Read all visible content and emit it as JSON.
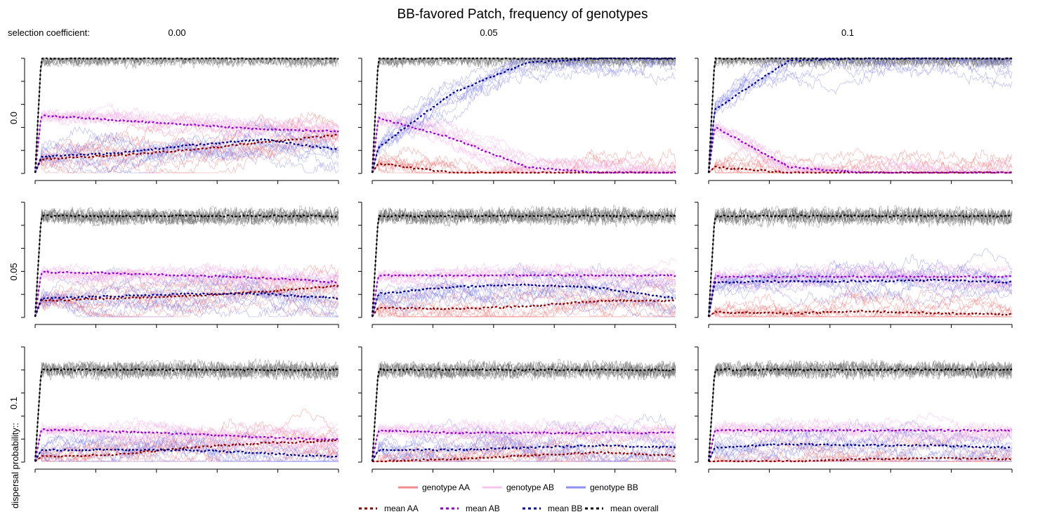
{
  "title": "BB-favored Patch, frequency of genotypes",
  "col_header_label": "selection coefficient:",
  "row_header_label": "dispersal probability::",
  "legend": {
    "lines": [
      {
        "label": "genotype AA",
        "color": "#f28c8c"
      },
      {
        "label": "genotype AB",
        "color": "#f7c6ec"
      },
      {
        "label": "genotype BB",
        "color": "#8f8ff0"
      }
    ],
    "means": [
      {
        "label": "mean AA",
        "color": "#8b0000"
      },
      {
        "label": "mean AB",
        "color": "#9400d3"
      },
      {
        "label": "mean BB",
        "color": "#00008b"
      },
      {
        "label": "mean overall",
        "color": "#000000"
      }
    ]
  },
  "colors": {
    "AA": "#f26d6d",
    "AB": "#f5b3ea",
    "BB": "#7b7bee",
    "overall": "#606060",
    "mean_AA": "#8b0000",
    "mean_AB": "#9400d3",
    "mean_BB": "#00008b",
    "mean_overall": "#000000"
  },
  "chart_data": {
    "type": "line",
    "grid": false,
    "axes_tick_labels": false,
    "replicates_per_genotype": 10,
    "columns": [
      "0.00",
      "0.05",
      "0.1"
    ],
    "rows": [
      "0.0",
      "0.05",
      "0.1"
    ],
    "panels": [
      {
        "row": "0.0",
        "col": "0.00",
        "mean_overall": [
          0.0,
          1.0,
          1.0,
          1.0,
          1.0,
          1.0
        ],
        "mean_AA": [
          0.0,
          0.12,
          0.15,
          0.2,
          0.27,
          0.33
        ],
        "mean_AB": [
          0.0,
          0.5,
          0.46,
          0.42,
          0.38,
          0.36
        ],
        "mean_BB": [
          0.0,
          0.14,
          0.17,
          0.24,
          0.29,
          0.2
        ]
      },
      {
        "row": "0.0",
        "col": "0.05",
        "mean_overall": [
          0.0,
          1.0,
          1.0,
          1.0,
          1.0,
          1.0
        ],
        "mean_AA": [
          0.0,
          0.08,
          0.0,
          0.0,
          0.0,
          0.0
        ],
        "mean_AB": [
          0.0,
          0.48,
          0.3,
          0.05,
          0.0,
          0.0
        ],
        "mean_BB": [
          0.0,
          0.22,
          0.7,
          0.96,
          1.0,
          1.0
        ]
      },
      {
        "row": "0.0",
        "col": "0.1",
        "mean_overall": [
          0.0,
          1.0,
          1.0,
          1.0,
          1.0,
          1.0
        ],
        "mean_AA": [
          0.0,
          0.05,
          0.0,
          0.0,
          0.0,
          0.0
        ],
        "mean_AB": [
          0.0,
          0.4,
          0.05,
          0.0,
          0.0,
          0.0
        ],
        "mean_BB": [
          0.0,
          0.55,
          0.98,
          1.0,
          1.0,
          1.0
        ]
      },
      {
        "row": "0.05",
        "col": "0.00",
        "mean_overall": [
          0.0,
          0.88,
          0.88,
          0.88,
          0.88,
          0.88
        ],
        "mean_AA": [
          0.0,
          0.14,
          0.16,
          0.18,
          0.22,
          0.27
        ],
        "mean_AB": [
          0.0,
          0.39,
          0.38,
          0.36,
          0.34,
          0.3
        ],
        "mean_BB": [
          0.0,
          0.16,
          0.18,
          0.2,
          0.2,
          0.16
        ]
      },
      {
        "row": "0.05",
        "col": "0.05",
        "mean_overall": [
          0.0,
          0.88,
          0.88,
          0.88,
          0.88,
          0.88
        ],
        "mean_AA": [
          0.0,
          0.08,
          0.07,
          0.09,
          0.14,
          0.14
        ],
        "mean_AB": [
          0.0,
          0.36,
          0.36,
          0.36,
          0.36,
          0.36
        ],
        "mean_BB": [
          0.0,
          0.2,
          0.26,
          0.28,
          0.25,
          0.16
        ]
      },
      {
        "row": "0.05",
        "col": "0.1",
        "mean_overall": [
          0.0,
          0.88,
          0.88,
          0.88,
          0.88,
          0.88
        ],
        "mean_AA": [
          0.0,
          0.04,
          0.03,
          0.05,
          0.03,
          0.02
        ],
        "mean_AB": [
          0.0,
          0.35,
          0.35,
          0.35,
          0.35,
          0.35
        ],
        "mean_BB": [
          0.0,
          0.3,
          0.31,
          0.31,
          0.32,
          0.3
        ]
      },
      {
        "row": "0.1",
        "col": "0.00",
        "mean_overall": [
          0.0,
          0.8,
          0.8,
          0.8,
          0.8,
          0.8
        ],
        "mean_AA": [
          0.0,
          0.04,
          0.06,
          0.12,
          0.16,
          0.18
        ],
        "mean_AB": [
          0.0,
          0.28,
          0.26,
          0.24,
          0.21,
          0.19
        ],
        "mean_BB": [
          0.0,
          0.1,
          0.1,
          0.1,
          0.07,
          0.04
        ]
      },
      {
        "row": "0.1",
        "col": "0.05",
        "mean_overall": [
          0.0,
          0.8,
          0.8,
          0.8,
          0.8,
          0.8
        ],
        "mean_AA": [
          0.0,
          0.0,
          0.02,
          0.05,
          0.08,
          0.05
        ],
        "mean_AB": [
          0.0,
          0.27,
          0.25,
          0.25,
          0.25,
          0.25
        ],
        "mean_BB": [
          0.0,
          0.1,
          0.1,
          0.12,
          0.14,
          0.12
        ]
      },
      {
        "row": "0.1",
        "col": "0.1",
        "mean_overall": [
          0.0,
          0.8,
          0.8,
          0.8,
          0.8,
          0.8
        ],
        "mean_AA": [
          0.0,
          0.0,
          0.0,
          0.02,
          0.03,
          0.02
        ],
        "mean_AB": [
          0.0,
          0.27,
          0.27,
          0.27,
          0.27,
          0.27
        ],
        "mean_BB": [
          0.0,
          0.12,
          0.15,
          0.14,
          0.14,
          0.12
        ]
      }
    ]
  }
}
